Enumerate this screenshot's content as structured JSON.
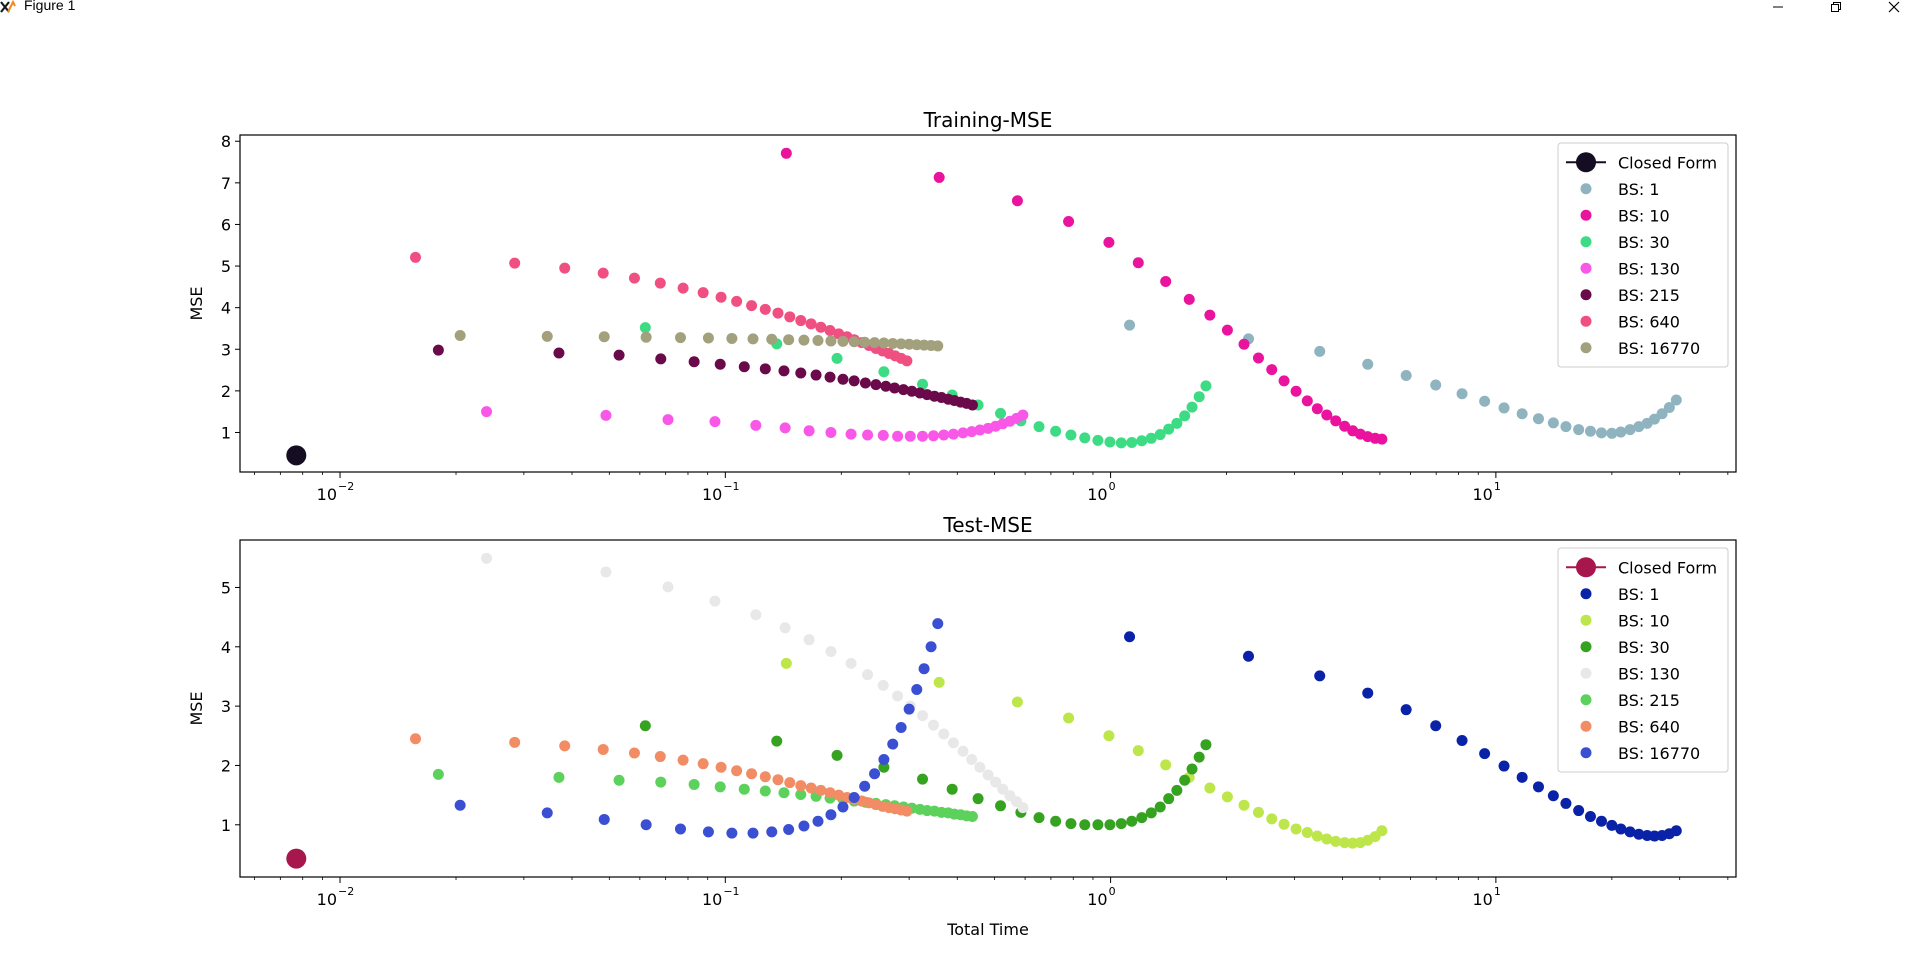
{
  "window": {
    "title": "Figure 1",
    "icons": [
      "figure-app-icon",
      "minimize-icon",
      "maximize-icon",
      "close-icon"
    ]
  },
  "chart_data": [
    {
      "type": "scatter",
      "title": "Training-MSE",
      "xlabel": "",
      "ylabel": "MSE",
      "xscale": "log",
      "xlim": [
        0.0055,
        42
      ],
      "ylim": [
        0.05,
        8.15
      ],
      "xticks": [
        {
          "value": 0.01,
          "base": "10",
          "exp": "−2"
        },
        {
          "value": 0.1,
          "base": "10",
          "exp": "−1"
        },
        {
          "value": 1,
          "base": "10",
          "exp": "0"
        },
        {
          "value": 10,
          "base": "10",
          "exp": "1"
        }
      ],
      "yticks": [
        1,
        2,
        3,
        4,
        5,
        6,
        7,
        8
      ],
      "legend_position": "top-right",
      "series": [
        {
          "name": "Closed Form",
          "color": "#150d22",
          "marker": "large-line",
          "x": [
            0.0077
          ],
          "y": [
            0.45
          ]
        },
        {
          "name": "BS: 1",
          "color": "#8fb3bf",
          "x": [
            1.12,
            2.28,
            3.49,
            4.65,
            5.85,
            6.98,
            8.17,
            9.35,
            10.5,
            11.7,
            12.9,
            14.1,
            15.2,
            16.4,
            17.6,
            18.8,
            20.0,
            21.1,
            22.3,
            23.5,
            24.7,
            25.8,
            27.0,
            28.2,
            29.4
          ],
          "y": [
            3.58,
            3.25,
            2.95,
            2.64,
            2.37,
            2.14,
            1.93,
            1.75,
            1.59,
            1.45,
            1.33,
            1.23,
            1.14,
            1.07,
            1.03,
            0.99,
            0.98,
            1.01,
            1.07,
            1.14,
            1.22,
            1.32,
            1.45,
            1.6,
            1.78
          ]
        },
        {
          "name": "BS: 10",
          "color": "#e9139e",
          "x": [
            0.144,
            0.359,
            0.573,
            0.778,
            0.99,
            1.18,
            1.39,
            1.6,
            1.81,
            2.01,
            2.22,
            2.42,
            2.62,
            2.82,
            3.03,
            3.24,
            3.44,
            3.64,
            3.84,
            4.05,
            4.25,
            4.45,
            4.65,
            4.86,
            5.06
          ],
          "y": [
            7.71,
            7.13,
            6.57,
            6.07,
            5.57,
            5.08,
            4.63,
            4.2,
            3.82,
            3.46,
            3.12,
            2.79,
            2.51,
            2.24,
            1.99,
            1.76,
            1.57,
            1.42,
            1.28,
            1.15,
            1.04,
            0.96,
            0.9,
            0.86,
            0.84
          ]
        },
        {
          "name": "BS: 30",
          "color": "#3ddc84",
          "x": [
            0.062,
            0.136,
            0.195,
            0.258,
            0.325,
            0.388,
            0.453,
            0.518,
            0.585,
            0.652,
            0.72,
            0.789,
            0.857,
            0.927,
            0.996,
            1.066,
            1.135,
            1.205,
            1.275,
            1.345,
            1.415,
            1.486,
            1.557,
            1.627,
            1.698,
            1.768
          ],
          "y": [
            3.52,
            3.13,
            2.78,
            2.46,
            2.16,
            1.9,
            1.66,
            1.46,
            1.28,
            1.14,
            1.03,
            0.94,
            0.87,
            0.81,
            0.77,
            0.75,
            0.76,
            0.8,
            0.86,
            0.95,
            1.08,
            1.22,
            1.4,
            1.61,
            1.86,
            2.12
          ]
        },
        {
          "name": "BS: 130",
          "color": "#f957e8",
          "x": [
            0.024,
            0.049,
            0.071,
            0.094,
            0.12,
            0.143,
            0.165,
            0.188,
            0.212,
            0.234,
            0.257,
            0.28,
            0.302,
            0.325,
            0.347,
            0.369,
            0.391,
            0.414,
            0.436,
            0.458,
            0.481,
            0.503,
            0.525,
            0.548,
            0.57,
            0.592
          ],
          "y": [
            1.5,
            1.41,
            1.31,
            1.26,
            1.17,
            1.11,
            1.04,
            1.0,
            0.96,
            0.94,
            0.93,
            0.91,
            0.91,
            0.91,
            0.92,
            0.94,
            0.96,
            0.99,
            1.02,
            1.06,
            1.1,
            1.15,
            1.21,
            1.27,
            1.34,
            1.42
          ]
        },
        {
          "name": "BS: 215",
          "color": "#6a0a4a",
          "x": [
            0.018,
            0.037,
            0.053,
            0.068,
            0.083,
            0.097,
            0.112,
            0.127,
            0.142,
            0.157,
            0.172,
            0.187,
            0.202,
            0.216,
            0.231,
            0.246,
            0.261,
            0.275,
            0.29,
            0.305,
            0.32,
            0.334,
            0.349,
            0.364,
            0.379,
            0.393,
            0.408,
            0.423,
            0.438
          ],
          "y": [
            2.98,
            2.91,
            2.86,
            2.77,
            2.7,
            2.64,
            2.58,
            2.53,
            2.48,
            2.43,
            2.38,
            2.33,
            2.28,
            2.24,
            2.19,
            2.15,
            2.11,
            2.07,
            2.03,
            1.99,
            1.95,
            1.91,
            1.87,
            1.84,
            1.8,
            1.77,
            1.73,
            1.7,
            1.66
          ]
        },
        {
          "name": "BS: 640",
          "color": "#f04f82",
          "x": [
            0.0157,
            0.0284,
            0.0383,
            0.0482,
            0.0581,
            0.0678,
            0.0777,
            0.0876,
            0.0975,
            0.107,
            0.117,
            0.127,
            0.137,
            0.147,
            0.157,
            0.167,
            0.177,
            0.187,
            0.197,
            0.207,
            0.216,
            0.226,
            0.236,
            0.246,
            0.256,
            0.266,
            0.276,
            0.286,
            0.296
          ],
          "y": [
            5.21,
            5.07,
            4.95,
            4.83,
            4.71,
            4.59,
            4.47,
            4.36,
            4.25,
            4.15,
            4.05,
            3.96,
            3.87,
            3.78,
            3.69,
            3.61,
            3.53,
            3.45,
            3.37,
            3.3,
            3.23,
            3.16,
            3.09,
            3.02,
            2.96,
            2.9,
            2.84,
            2.78,
            2.72
          ]
        },
        {
          "name": "BS: 16770",
          "color": "#a3a07d",
          "x": [
            0.0205,
            0.0345,
            0.0485,
            0.0623,
            0.0765,
            0.0904,
            0.104,
            0.118,
            0.132,
            0.146,
            0.16,
            0.174,
            0.188,
            0.202,
            0.216,
            0.23,
            0.244,
            0.258,
            0.272,
            0.286,
            0.3,
            0.314,
            0.328,
            0.342,
            0.356
          ],
          "y": [
            3.33,
            3.31,
            3.3,
            3.29,
            3.28,
            3.27,
            3.26,
            3.25,
            3.24,
            3.23,
            3.22,
            3.21,
            3.2,
            3.19,
            3.18,
            3.17,
            3.16,
            3.15,
            3.14,
            3.13,
            3.12,
            3.11,
            3.1,
            3.09,
            3.08
          ]
        }
      ]
    },
    {
      "type": "scatter",
      "title": "Test-MSE",
      "xlabel": "Total Time",
      "ylabel": "MSE",
      "xscale": "log",
      "xlim": [
        0.0055,
        42
      ],
      "ylim": [
        0.12,
        5.8
      ],
      "xticks": [
        {
          "value": 0.01,
          "base": "10",
          "exp": "−2"
        },
        {
          "value": 0.1,
          "base": "10",
          "exp": "−1"
        },
        {
          "value": 1,
          "base": "10",
          "exp": "0"
        },
        {
          "value": 10,
          "base": "10",
          "exp": "1"
        }
      ],
      "yticks": [
        1,
        2,
        3,
        4,
        5
      ],
      "legend_position": "top-right",
      "series": [
        {
          "name": "Closed Form",
          "color": "#a8164e",
          "marker": "large-line",
          "x": [
            0.0077
          ],
          "y": [
            0.43
          ]
        },
        {
          "name": "BS: 1",
          "color": "#0a22a8",
          "x": [
            1.12,
            2.28,
            3.49,
            4.65,
            5.85,
            6.98,
            8.17,
            9.35,
            10.5,
            11.7,
            12.9,
            14.1,
            15.2,
            16.4,
            17.6,
            18.8,
            20.0,
            21.1,
            22.3,
            23.5,
            24.7,
            25.8,
            27.0,
            28.2,
            29.4
          ],
          "y": [
            4.17,
            3.84,
            3.51,
            3.22,
            2.94,
            2.67,
            2.42,
            2.2,
            1.99,
            1.8,
            1.64,
            1.49,
            1.36,
            1.24,
            1.14,
            1.06,
            0.99,
            0.93,
            0.88,
            0.84,
            0.82,
            0.81,
            0.82,
            0.85,
            0.9
          ]
        },
        {
          "name": "BS: 10",
          "color": "#bde64a",
          "x": [
            0.144,
            0.359,
            0.573,
            0.778,
            0.99,
            1.18,
            1.39,
            1.6,
            1.81,
            2.01,
            2.22,
            2.42,
            2.62,
            2.82,
            3.03,
            3.24,
            3.44,
            3.64,
            3.84,
            4.05,
            4.25,
            4.45,
            4.65,
            4.86,
            5.06
          ],
          "y": [
            3.72,
            3.4,
            3.07,
            2.8,
            2.5,
            2.25,
            2.01,
            1.8,
            1.62,
            1.47,
            1.33,
            1.21,
            1.1,
            1.01,
            0.93,
            0.87,
            0.81,
            0.76,
            0.72,
            0.7,
            0.69,
            0.7,
            0.74,
            0.8,
            0.9
          ]
        },
        {
          "name": "BS: 30",
          "color": "#36a320",
          "x": [
            0.062,
            0.136,
            0.195,
            0.258,
            0.325,
            0.388,
            0.453,
            0.518,
            0.585,
            0.652,
            0.72,
            0.789,
            0.857,
            0.927,
            0.996,
            1.066,
            1.135,
            1.205,
            1.275,
            1.345,
            1.415,
            1.486,
            1.557,
            1.627,
            1.698,
            1.768
          ],
          "y": [
            2.67,
            2.41,
            2.17,
            1.97,
            1.77,
            1.6,
            1.44,
            1.32,
            1.21,
            1.12,
            1.06,
            1.02,
            1.0,
            1.0,
            1.0,
            1.02,
            1.06,
            1.12,
            1.2,
            1.3,
            1.44,
            1.58,
            1.75,
            1.94,
            2.14,
            2.35
          ]
        },
        {
          "name": "BS: 130",
          "color": "#e8e8e8",
          "x": [
            0.024,
            0.049,
            0.071,
            0.094,
            0.12,
            0.143,
            0.165,
            0.188,
            0.212,
            0.234,
            0.257,
            0.28,
            0.302,
            0.325,
            0.347,
            0.369,
            0.391,
            0.414,
            0.436,
            0.458,
            0.481,
            0.503,
            0.525,
            0.548,
            0.57,
            0.592
          ],
          "y": [
            5.49,
            5.26,
            5.01,
            4.77,
            4.54,
            4.32,
            4.12,
            3.92,
            3.72,
            3.53,
            3.35,
            3.17,
            3.0,
            2.84,
            2.68,
            2.53,
            2.38,
            2.24,
            2.1,
            1.97,
            1.84,
            1.72,
            1.6,
            1.49,
            1.39,
            1.29
          ]
        },
        {
          "name": "BS: 215",
          "color": "#5cd15c",
          "x": [
            0.018,
            0.037,
            0.053,
            0.068,
            0.083,
            0.097,
            0.112,
            0.127,
            0.142,
            0.157,
            0.172,
            0.187,
            0.202,
            0.216,
            0.231,
            0.246,
            0.261,
            0.275,
            0.29,
            0.305,
            0.32,
            0.334,
            0.349,
            0.364,
            0.379,
            0.393,
            0.408,
            0.423,
            0.438
          ],
          "y": [
            1.85,
            1.8,
            1.75,
            1.72,
            1.68,
            1.64,
            1.6,
            1.57,
            1.54,
            1.51,
            1.48,
            1.45,
            1.43,
            1.4,
            1.38,
            1.36,
            1.34,
            1.32,
            1.3,
            1.28,
            1.26,
            1.24,
            1.23,
            1.21,
            1.2,
            1.18,
            1.17,
            1.15,
            1.14
          ]
        },
        {
          "name": "BS: 640",
          "color": "#f28c65",
          "x": [
            0.0157,
            0.0284,
            0.0383,
            0.0482,
            0.0581,
            0.0678,
            0.0777,
            0.0876,
            0.0975,
            0.107,
            0.117,
            0.127,
            0.137,
            0.147,
            0.157,
            0.167,
            0.177,
            0.187,
            0.197,
            0.207,
            0.216,
            0.226,
            0.236,
            0.246,
            0.256,
            0.266,
            0.276,
            0.286,
            0.296
          ],
          "y": [
            2.45,
            2.39,
            2.33,
            2.27,
            2.21,
            2.15,
            2.09,
            2.03,
            1.97,
            1.91,
            1.86,
            1.81,
            1.76,
            1.71,
            1.66,
            1.62,
            1.58,
            1.54,
            1.5,
            1.46,
            1.43,
            1.4,
            1.37,
            1.34,
            1.31,
            1.29,
            1.27,
            1.25,
            1.23
          ]
        },
        {
          "name": "BS: 16770",
          "color": "#3a4fd1",
          "x": [
            0.0205,
            0.0345,
            0.0485,
            0.0623,
            0.0765,
            0.0904,
            0.104,
            0.118,
            0.132,
            0.146,
            0.16,
            0.174,
            0.188,
            0.202,
            0.216,
            0.23,
            0.244,
            0.258,
            0.272,
            0.286,
            0.3,
            0.314,
            0.328,
            0.342,
            0.356
          ],
          "y": [
            1.33,
            1.2,
            1.09,
            1.0,
            0.93,
            0.88,
            0.86,
            0.86,
            0.88,
            0.92,
            0.98,
            1.06,
            1.17,
            1.3,
            1.46,
            1.65,
            1.86,
            2.1,
            2.36,
            2.64,
            2.95,
            3.28,
            3.63,
            4.0,
            4.39
          ]
        }
      ]
    }
  ]
}
